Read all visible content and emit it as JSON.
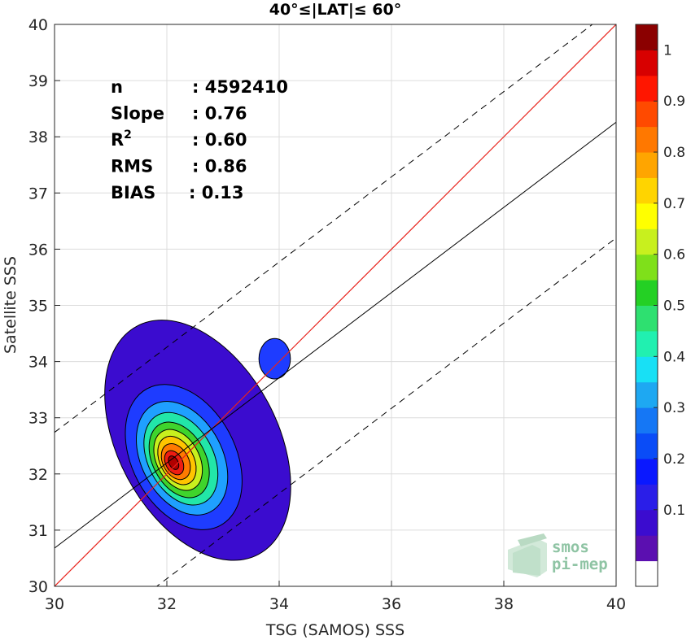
{
  "chart_data": {
    "type": "contour",
    "title": "40°≤|LAT|≤ 60°",
    "xlabel": "TSG (SAMOS) SSS",
    "ylabel": "Satellite SSS",
    "xlim": [
      30,
      40
    ],
    "ylim": [
      30,
      40
    ],
    "xticks": [
      "30",
      "32",
      "34",
      "36",
      "38",
      "40"
    ],
    "yticks": [
      "30",
      "31",
      "32",
      "33",
      "34",
      "35",
      "36",
      "37",
      "38",
      "39",
      "40"
    ],
    "grid": true,
    "stats": [
      {
        "label": "n",
        "value": ": 4592410"
      },
      {
        "label": "Slope",
        "value": ": 0.76"
      },
      {
        "label": "R",
        "sup": "2",
        "value": ": 0.60"
      },
      {
        "label": "RMS",
        "value": ": 0.86"
      },
      {
        "label": "BIAS",
        "value": ": 0.13"
      }
    ],
    "lines": {
      "identity": {
        "slope": 1,
        "intercept": 0,
        "color": "#e8231c"
      },
      "fit": {
        "points": [
          [
            30,
            30.68
          ],
          [
            40,
            38.26
          ]
        ],
        "color": "#000000"
      },
      "fit_upper": {
        "points": [
          [
            30,
            32.74
          ],
          [
            40,
            40.32
          ]
        ],
        "style": "dashed"
      },
      "fit_lower": {
        "points": [
          [
            30,
            28.62
          ],
          [
            40,
            36.2
          ]
        ],
        "style": "dashed"
      }
    },
    "density_peak": {
      "x": 32.1,
      "y": 32.2
    },
    "contour_levels": [
      {
        "level": 0.05,
        "color": "#3b0ccf",
        "rx": 1.42,
        "ry": 2.3,
        "cx": 32.55,
        "cy": 32.6,
        "angle": 62
      },
      {
        "level": 0.15,
        "color": "#1e3cff",
        "rx": 0.92,
        "ry": 1.38,
        "cx": 32.3,
        "cy": 32.3,
        "angle": 62
      },
      {
        "level": 0.3,
        "color": "#1fa0ff",
        "rx": 0.72,
        "ry": 1.08,
        "cx": 32.27,
        "cy": 32.28,
        "angle": 62
      },
      {
        "level": 0.4,
        "color": "#22e6a8",
        "rx": 0.58,
        "ry": 0.88,
        "cx": 32.25,
        "cy": 32.27,
        "angle": 62
      },
      {
        "level": 0.5,
        "color": "#3fd42c",
        "rx": 0.47,
        "ry": 0.72,
        "cx": 32.22,
        "cy": 32.25,
        "angle": 62
      },
      {
        "level": 0.6,
        "color": "#c8f01e",
        "rx": 0.38,
        "ry": 0.58,
        "cx": 32.2,
        "cy": 32.25,
        "angle": 62
      },
      {
        "level": 0.7,
        "color": "#ffc400",
        "rx": 0.3,
        "ry": 0.46,
        "cx": 32.18,
        "cy": 32.24,
        "angle": 62
      },
      {
        "level": 0.8,
        "color": "#ff7a00",
        "rx": 0.23,
        "ry": 0.34,
        "cx": 32.16,
        "cy": 32.22,
        "angle": 62
      },
      {
        "level": 0.9,
        "color": "#ee1c12",
        "rx": 0.15,
        "ry": 0.23,
        "cx": 32.13,
        "cy": 32.2,
        "angle": 62
      },
      {
        "level": 1.0,
        "color": "#b00000",
        "rx": 0.08,
        "ry": 0.13,
        "cx": 32.12,
        "cy": 32.2,
        "angle": 62
      }
    ],
    "secondary_blob": {
      "cx": 33.92,
      "cy": 34.05,
      "rx": 0.28,
      "ry": 0.36,
      "color": "#1e3cff"
    },
    "colorbar": {
      "ticks": [
        "0.1",
        "0.2",
        "0.3",
        "0.4",
        "0.5",
        "0.6",
        "0.7",
        "0.8",
        "0.9",
        "1"
      ],
      "colors": [
        "#ffffff",
        "#5b0fb0",
        "#3b0ccf",
        "#2a1ee8",
        "#0a18ff",
        "#0a4cf7",
        "#1577f5",
        "#1ea8f2",
        "#18e0f5",
        "#21f0b0",
        "#2ee070",
        "#24d024",
        "#7fe01a",
        "#c8f01e",
        "#ffff00",
        "#ffd400",
        "#ffa500",
        "#ff7800",
        "#ff4a00",
        "#ff1600",
        "#d80000",
        "#8b0000"
      ]
    }
  },
  "logo": {
    "line1": "smos",
    "line2": "pi-mep"
  }
}
